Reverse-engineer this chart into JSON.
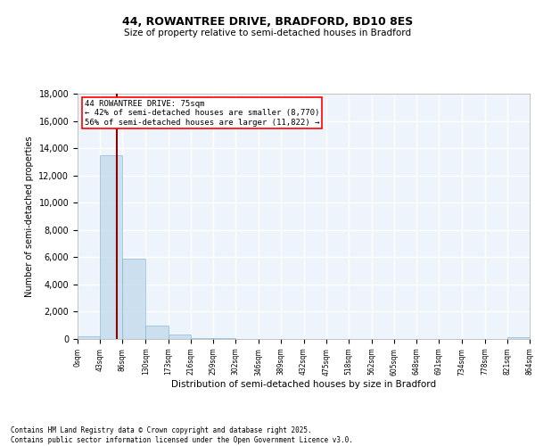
{
  "title_line1": "44, ROWANTREE DRIVE, BRADFORD, BD10 8ES",
  "title_line2": "Size of property relative to semi-detached houses in Bradford",
  "xlabel": "Distribution of semi-detached houses by size in Bradford",
  "ylabel": "Number of semi-detached properties",
  "annotation_title": "44 ROWANTREE DRIVE: 75sqm",
  "annotation_line2": "← 42% of semi-detached houses are smaller (8,770)",
  "annotation_line3": "56% of semi-detached houses are larger (11,822) →",
  "property_size": 75,
  "bin_edges": [
    0,
    43,
    86,
    130,
    173,
    216,
    259,
    302,
    346,
    389,
    432,
    475,
    518,
    562,
    605,
    648,
    691,
    734,
    778,
    821,
    864
  ],
  "bin_counts": [
    200,
    13500,
    5900,
    950,
    300,
    50,
    50,
    30,
    20,
    10,
    10,
    10,
    5,
    5,
    5,
    5,
    5,
    5,
    5,
    100
  ],
  "bar_color": "#c6dcec",
  "bar_edge_color": "#7fb3d3",
  "bar_alpha": 0.85,
  "vline_color": "#8b0000",
  "vline_x": 75,
  "ylim": [
    0,
    18000
  ],
  "yticks": [
    0,
    2000,
    4000,
    6000,
    8000,
    10000,
    12000,
    14000,
    16000,
    18000
  ],
  "background_color": "#eef4fb",
  "grid_color": "#ffffff",
  "footnote": "Contains HM Land Registry data © Crown copyright and database right 2025.\nContains public sector information licensed under the Open Government Licence v3.0."
}
